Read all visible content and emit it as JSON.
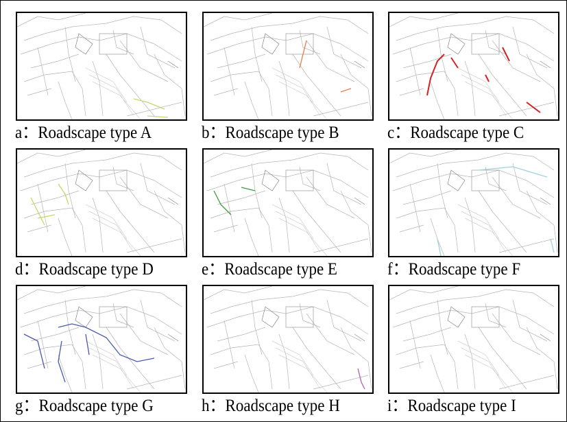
{
  "panels": [
    {
      "caption": "a：Roadscape type A"
    },
    {
      "caption": "b：Roadscape type B"
    },
    {
      "caption": "c：Roadscape type C"
    },
    {
      "caption": "d：Roadscape type D"
    },
    {
      "caption": "e：Roadscape type E"
    },
    {
      "caption": "f：Roadscape type F"
    },
    {
      "caption": "g：Roadscape type G"
    },
    {
      "caption": "h：Roadscape type H"
    },
    {
      "caption": "i：Roadscape type I"
    }
  ]
}
